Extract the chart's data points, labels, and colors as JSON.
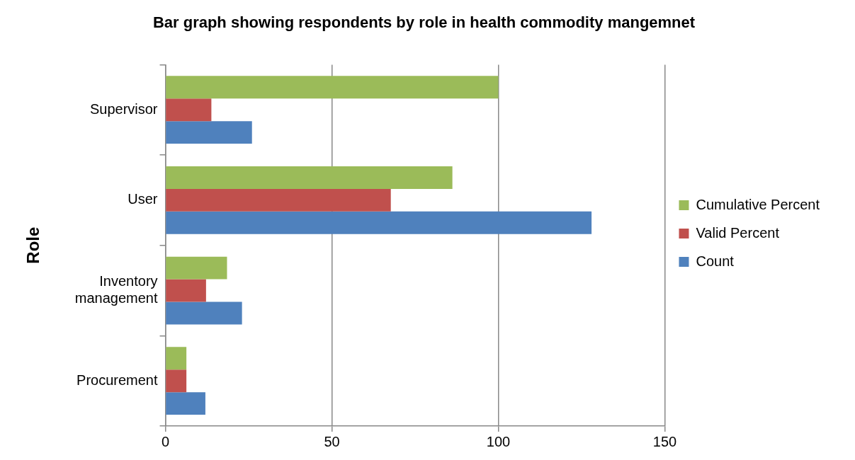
{
  "chart_data": {
    "type": "bar",
    "orientation": "horizontal",
    "title": "Bar graph showing respondents by role in health commodity mangemnet",
    "ylabel": "Role",
    "categories": [
      "Supervisor",
      "User",
      "Inventory management",
      "Procurement"
    ],
    "series": [
      {
        "name": "Cumulative Percent",
        "color": "#9bbb59",
        "values": [
          100,
          86.2,
          18.5,
          6.3
        ]
      },
      {
        "name": "Valid Percent",
        "color": "#c0504d",
        "values": [
          13.8,
          67.7,
          12.2,
          6.3
        ]
      },
      {
        "name": "Count",
        "color": "#4f81bd",
        "values": [
          26,
          128,
          23,
          12
        ]
      }
    ],
    "xlim": [
      0,
      150
    ],
    "xticks": [
      0,
      50,
      100,
      150
    ],
    "grid": "x",
    "legend": "right"
  }
}
